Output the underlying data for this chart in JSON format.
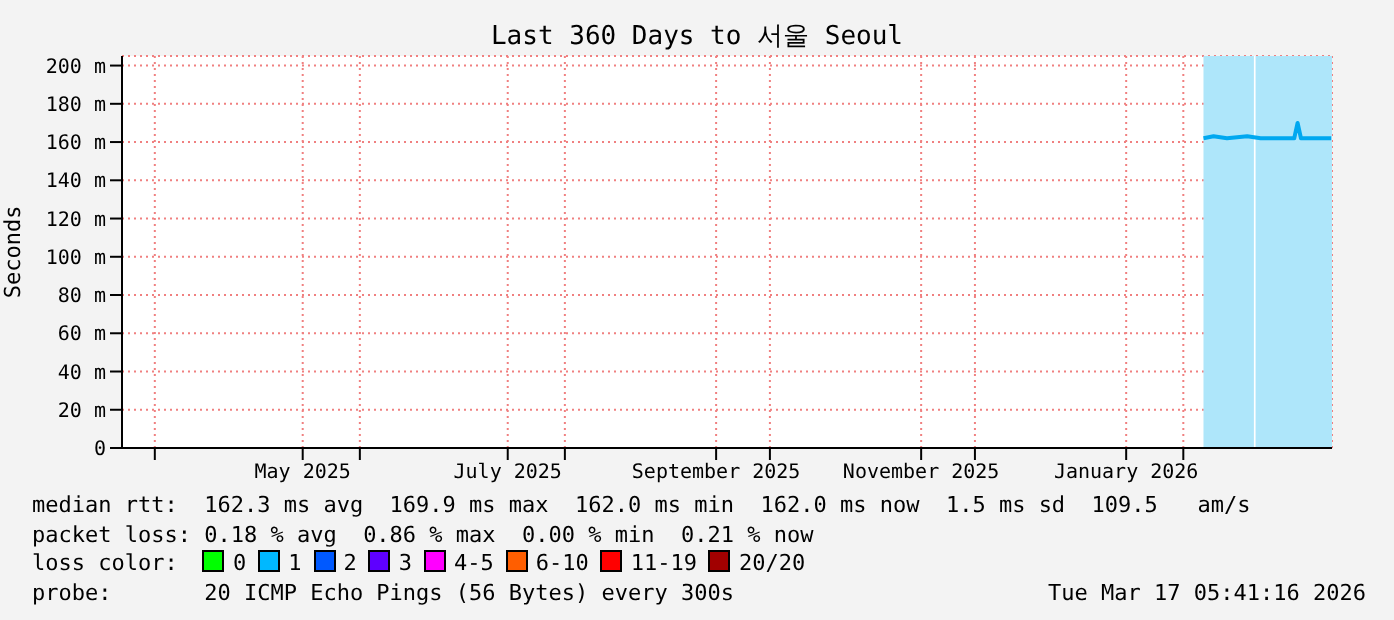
{
  "chart_data": {
    "type": "line",
    "title": "Last 360 Days to 서울 Seoul",
    "ylabel": "Seconds",
    "xlim": [
      "2025-03-22T05:41",
      "2026-03-17T05:41"
    ],
    "xticks": [
      {
        "value": "2025-04-01",
        "label": null
      },
      {
        "value": "2025-05-15",
        "label": "May 2025"
      },
      {
        "value": "2025-06-01",
        "label": null
      },
      {
        "value": "2025-07-15",
        "label": "July 2025"
      },
      {
        "value": "2025-08-01",
        "label": null
      },
      {
        "value": "2025-09-15",
        "label": "September 2025"
      },
      {
        "value": "2025-10-01",
        "label": null
      },
      {
        "value": "2025-11-15",
        "label": "November 2025"
      },
      {
        "value": "2025-12-01",
        "label": null
      },
      {
        "value": "2026-01-15",
        "label": "January 2026"
      },
      {
        "value": "2026-02-01",
        "label": null
      }
    ],
    "ylim": [
      0,
      205
    ],
    "yticks": [
      0,
      {
        "value": 20,
        "label": "20 m"
      },
      {
        "value": 40,
        "label": "40 m"
      },
      {
        "value": 60,
        "label": "60 m"
      },
      {
        "value": 80,
        "label": "80 m"
      },
      {
        "value": 100,
        "label": "100 m"
      },
      {
        "value": 120,
        "label": "120 m"
      },
      {
        "value": 140,
        "label": "140 m"
      },
      {
        "value": 160,
        "label": "160 m"
      },
      {
        "value": 180,
        "label": "180 m"
      },
      {
        "value": 200,
        "label": "200 m"
      }
    ],
    "grid": true,
    "legend": false,
    "series": [
      {
        "color": "#00a8f0",
        "x": [
          "2026-02-07",
          "2026-02-10",
          "2026-02-14",
          "2026-02-20",
          "2026-02-24",
          "2026-03-06",
          "2026-03-07",
          "2026-03-08",
          "2026-03-17"
        ],
        "values": [
          162,
          163,
          162,
          163,
          162,
          162,
          170,
          162,
          162
        ]
      }
    ],
    "bands": [
      {
        "axis": "x",
        "from": "2026-02-07",
        "to": "2026-02-22",
        "color": "#aee6fa"
      },
      {
        "axis": "x",
        "from": "2026-02-22T12:00",
        "to": "2026-03-17T05:41",
        "color": "#aee6fa"
      }
    ],
    "annotations": [
      "median rtt:  162.3 ms avg  169.9 ms max  162.0 ms min  162.0 ms now  1.5 ms sd  109.5   am/s",
      "packet loss: 0.18 % avg  0.86 % max  0.00 % min  0.21 % now",
      "loss color:  0  1  2  3  4-5  6-10  11-19  20/20",
      "probe:       20 ICMP Echo Pings (56 Bytes) every 300s",
      "Tue Mar 17 05:41:16 2026"
    ]
  }
}
